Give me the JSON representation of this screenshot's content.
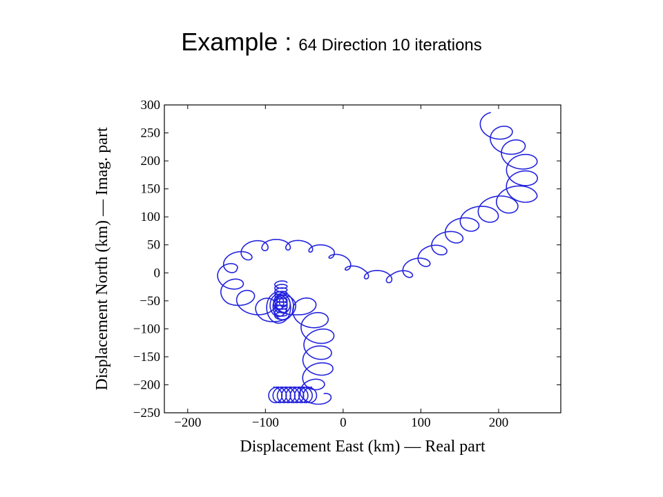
{
  "slide": {
    "title_main": "Example : ",
    "title_sub": "64 Direction 10 iterations"
  },
  "chart_data": {
    "type": "line",
    "title": "",
    "xlabel": "Displacement East (km) — Real part",
    "ylabel": "Displacement North (km) — Imag. part",
    "xlim": [
      -230,
      280
    ],
    "ylim": [
      -250,
      300
    ],
    "xticks": [
      -200,
      -100,
      0,
      100,
      200
    ],
    "yticks": [
      300,
      250,
      200,
      150,
      100,
      50,
      0,
      -50,
      -100,
      -150,
      -200,
      -250
    ],
    "grid": false,
    "colors": {
      "series": "#2222dd",
      "axis": "#000000"
    },
    "series": [
      {
        "guide": [
          [
            -25,
            -230
          ],
          [
            -40,
            -215
          ],
          [
            -40,
            -195
          ],
          [
            -30,
            -175
          ],
          [
            -35,
            -150
          ],
          [
            -30,
            -120
          ],
          [
            -35,
            -95
          ],
          [
            -45,
            -70
          ],
          [
            -60,
            -55
          ],
          [
            -75,
            -60
          ],
          [
            -90,
            -70
          ],
          [
            -140,
            -40
          ],
          [
            -150,
            10
          ],
          [
            -110,
            50
          ],
          [
            -60,
            50
          ],
          [
            -20,
            40
          ],
          [
            20,
            0
          ],
          [
            70,
            -10
          ],
          [
            110,
            30
          ],
          [
            160,
            90
          ],
          [
            230,
            140
          ],
          [
            230,
            200
          ],
          [
            200,
            250
          ],
          [
            190,
            270
          ]
        ],
        "loops": 32,
        "loop_radius": 20
      },
      {
        "cluster": "tail",
        "center": [
          -80,
          -62
        ],
        "radii": [
          28,
          24,
          20,
          16,
          12,
          9
        ],
        "inner_spiral": {
          "x": -80,
          "y_from": -18,
          "y_to": -80
        },
        "bottom": {
          "x_from": -90,
          "x_to": -40,
          "y": -218,
          "amp": 14
        }
      }
    ]
  }
}
